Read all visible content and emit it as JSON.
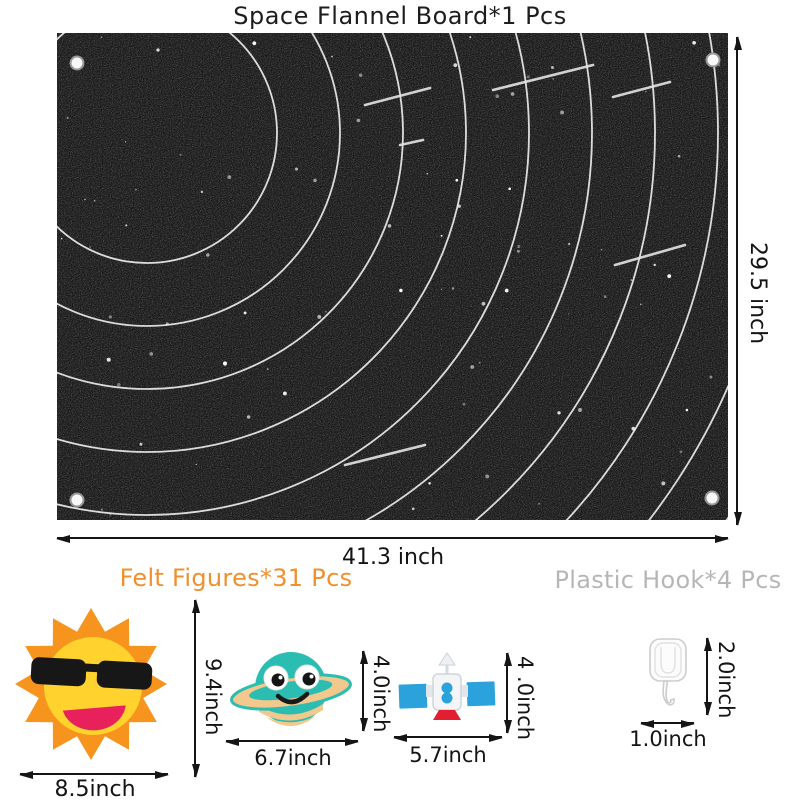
{
  "title": "Space Flannel Board*1 Pcs",
  "board": {
    "width": "41.3 inch",
    "height": "29.5 inch"
  },
  "sections": {
    "felt": "Felt Figures*31 Pcs",
    "hook": "Plastic Hook*4 Pcs"
  },
  "dims": {
    "sun_w": "8.5inch",
    "sun_h": "9.4inch",
    "planet_w": "6.7inch",
    "planet_h": "4.0inch",
    "sat_w": "5.7inch",
    "sat_h": "4 .0inch",
    "hook_w": "1.0inch",
    "hook_h": "2.0inch"
  },
  "colors": {
    "board": "#181818",
    "felt_header": "#F0902C",
    "hook_header": "#B5B7B7",
    "sun_body": "#F7941E",
    "sun_face": "#FFD22E",
    "sun_mouth": "#E8205C",
    "planet_body": "#2CBDB2",
    "planet_ring": "#F2C88D",
    "satellite_panel": "#2BA2DC",
    "satellite_accent": "#E11F31"
  }
}
